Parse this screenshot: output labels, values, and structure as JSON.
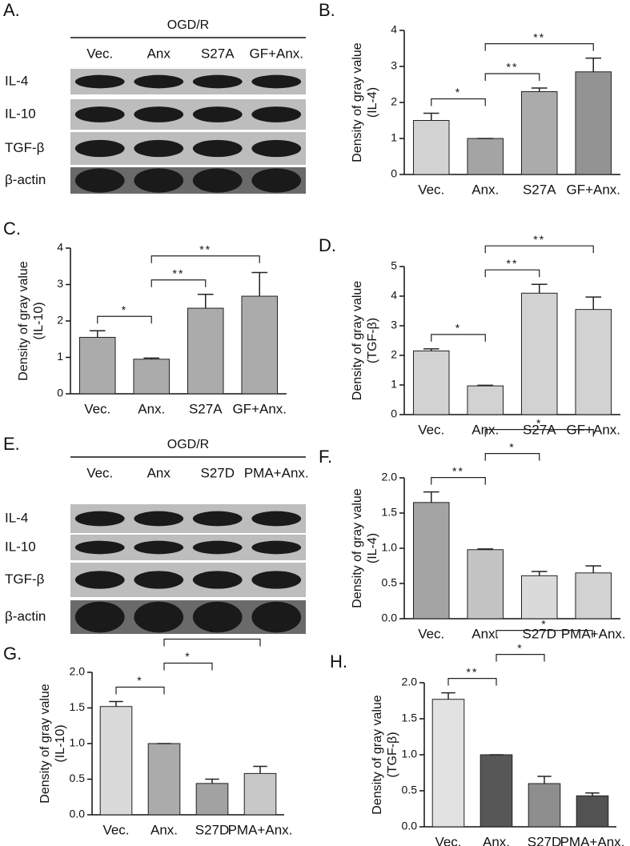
{
  "blots": [
    {
      "panel_label": "A.",
      "header": "OGD/R",
      "lanes": [
        "Vec.",
        "Anx",
        "S27A",
        "GF+Anx."
      ],
      "rows": [
        "IL-4",
        "IL-10",
        "TGF-β",
        "β-actin"
      ]
    },
    {
      "panel_label": "E.",
      "header": "OGD/R",
      "lanes": [
        "Vec.",
        "Anx",
        "S27D",
        "PMA+Anx."
      ],
      "rows": [
        "IL-4",
        "IL-10",
        "TGF-β",
        "β-actin"
      ]
    }
  ],
  "chart_data": [
    {
      "type": "bar",
      "panel_label": "B.",
      "ylabel": [
        "Density of gray value",
        "(IL-4)"
      ],
      "categories": [
        "Vec.",
        "Anx.",
        "S27A",
        "GF+Anx."
      ],
      "values": [
        1.5,
        1.0,
        2.3,
        2.85
      ],
      "errors": [
        0.2,
        0,
        0.1,
        0.38
      ],
      "colors": [
        "#d2d2d2",
        "#a4a4a4",
        "#ababab",
        "#939393"
      ],
      "ylim": [
        0,
        4
      ],
      "yticks": [
        0,
        1,
        2,
        3,
        4
      ],
      "annotations": [
        {
          "between": [
            "Vec.",
            "Anx."
          ],
          "label": "*"
        },
        {
          "between": [
            "Anx.",
            "S27A"
          ],
          "label": "**"
        },
        {
          "between": [
            "Anx.",
            "GF+Anx."
          ],
          "label": "**"
        }
      ]
    },
    {
      "type": "bar",
      "panel_label": "C.",
      "ylabel": [
        "Density of gray value",
        "(IL-10)"
      ],
      "categories": [
        "Vec.",
        "Anx.",
        "S27A",
        "GF+Anx."
      ],
      "values": [
        1.55,
        0.95,
        2.35,
        2.68
      ],
      "errors": [
        0.18,
        0.03,
        0.38,
        0.65
      ],
      "colors": [
        "#ababab",
        "#ababab",
        "#ababab",
        "#ababab"
      ],
      "ylim": [
        0,
        4
      ],
      "yticks": [
        0,
        1,
        2,
        3,
        4
      ],
      "annotations": [
        {
          "between": [
            "Vec.",
            "Anx."
          ],
          "label": "*"
        },
        {
          "between": [
            "Anx.",
            "S27A"
          ],
          "label": "**"
        },
        {
          "between": [
            "Anx.",
            "GF+Anx."
          ],
          "label": "**"
        }
      ]
    },
    {
      "type": "bar",
      "panel_label": "D.",
      "ylabel": [
        "Density of gray value",
        "(TGF-β)"
      ],
      "categories": [
        "Vec.",
        "Anx.",
        "S27A",
        "GF+Anx."
      ],
      "values": [
        2.15,
        0.97,
        4.1,
        3.55
      ],
      "errors": [
        0.07,
        0.02,
        0.3,
        0.42
      ],
      "colors": [
        "#d2d2d2",
        "#d2d2d2",
        "#d2d2d2",
        "#d2d2d2"
      ],
      "ylim": [
        0,
        5
      ],
      "yticks": [
        0,
        1,
        2,
        3,
        4,
        5
      ],
      "annotations": [
        {
          "between": [
            "Vec.",
            "Anx."
          ],
          "label": "*"
        },
        {
          "between": [
            "Anx.",
            "S27A"
          ],
          "label": "**"
        },
        {
          "between": [
            "Anx.",
            "GF+Anx."
          ],
          "label": "**"
        }
      ]
    },
    {
      "type": "bar",
      "panel_label": "F.",
      "ylabel": [
        "Density of gray value",
        "(IL-4)"
      ],
      "categories": [
        "Vec.",
        "Anx.",
        "S27D",
        "PMA+Anx."
      ],
      "values": [
        1.65,
        0.98,
        0.61,
        0.65
      ],
      "errors": [
        0.15,
        0.01,
        0.06,
        0.1
      ],
      "colors": [
        "#a4a4a4",
        "#c4c4c4",
        "#dadada",
        "#d2d2d2"
      ],
      "ylim": [
        0,
        2
      ],
      "yticks": [
        {
          "value": 0,
          "label": "0.0"
        },
        0.5,
        {
          "value": 1,
          "label": "1.0"
        },
        1.5,
        {
          "value": 2,
          "label": "2.0"
        }
      ],
      "annotations": [
        {
          "between": [
            "Vec.",
            "Anx."
          ],
          "label": "**"
        },
        {
          "between": [
            "Anx.",
            "S27D"
          ],
          "label": "*"
        },
        {
          "between": [
            "Anx.",
            "PMA+Anx."
          ],
          "label": "*"
        }
      ]
    },
    {
      "type": "bar",
      "panel_label": "G.",
      "ylabel": [
        "Density of gray value",
        "(IL-10)"
      ],
      "categories": [
        "Vec.",
        "Anx.",
        "S27D",
        "PMA+Anx."
      ],
      "values": [
        1.52,
        1.0,
        0.44,
        0.58
      ],
      "errors": [
        0.07,
        0,
        0.06,
        0.1
      ],
      "colors": [
        "#dadada",
        "#ababab",
        "#a2a2a2",
        "#c8c8c8"
      ],
      "ylim": [
        0,
        2
      ],
      "yticks": [
        {
          "value": 0,
          "label": "0.0"
        },
        0.5,
        {
          "value": 1,
          "label": "1.0"
        },
        1.5,
        {
          "value": 2,
          "label": "2.0"
        }
      ],
      "annotations": [
        {
          "between": [
            "Vec.",
            "Anx."
          ],
          "label": "*"
        },
        {
          "between": [
            "Anx.",
            "S27D"
          ],
          "label": "*"
        },
        {
          "between": [
            "Anx.",
            "PMA+Anx."
          ],
          "label": "*"
        }
      ]
    },
    {
      "type": "bar",
      "panel_label": "H.",
      "ylabel": [
        "Density of gray value",
        "(TGF-β)"
      ],
      "categories": [
        "Vec.",
        "Anx.",
        "S27D",
        "PMA+Anx."
      ],
      "values": [
        1.77,
        1.0,
        0.6,
        0.43
      ],
      "errors": [
        0.09,
        0,
        0.1,
        0.04
      ],
      "colors": [
        "#e2e2e2",
        "#575757",
        "#8e8e8e",
        "#525252"
      ],
      "ylim": [
        0,
        2
      ],
      "yticks": [
        {
          "value": 0,
          "label": "0.0"
        },
        0.5,
        {
          "value": 1,
          "label": "1.0"
        },
        1.5,
        {
          "value": 2,
          "label": "2.0"
        }
      ],
      "annotations": [
        {
          "between": [
            "Vec.",
            "Anx."
          ],
          "label": "**"
        },
        {
          "between": [
            "Anx.",
            "S27D"
          ],
          "label": "*"
        },
        {
          "between": [
            "Anx.",
            "PMA+Anx."
          ],
          "label": "*"
        }
      ]
    }
  ]
}
